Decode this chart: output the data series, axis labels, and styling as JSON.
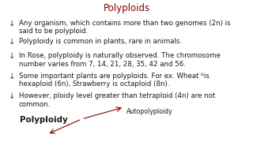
{
  "title": "Polyploids",
  "title_color": "#8b0000",
  "bg_color": "#ffffff",
  "bullet_color": "#4a4a00",
  "text_color": "#1a1a1a",
  "bullet_char": "↓",
  "bullets": [
    "Any organism, which contains more than two genomes (2n) is\nsaid to be polyploid.",
    "Polyploidy is common in plants, rare in animals.",
    "In Rose, polyploidy is naturally observed. The chromosome\nnumber varies from 7, 14, 21, 28, 35, 42 and 56.",
    "Some important plants are polyploids. For ex. Wheat ᵇis\nhexaploid (6n), Strawberry is octaploid (8n).",
    "However, ploidy level greater than tetraploid (4n) are not\ncommon."
  ],
  "bottom_left_label": "Polyploidy",
  "bottom_right_label": "Autopolyploidy",
  "arrow_color": "#8b0000",
  "font_size": 6.2,
  "title_font_size": 8.5
}
